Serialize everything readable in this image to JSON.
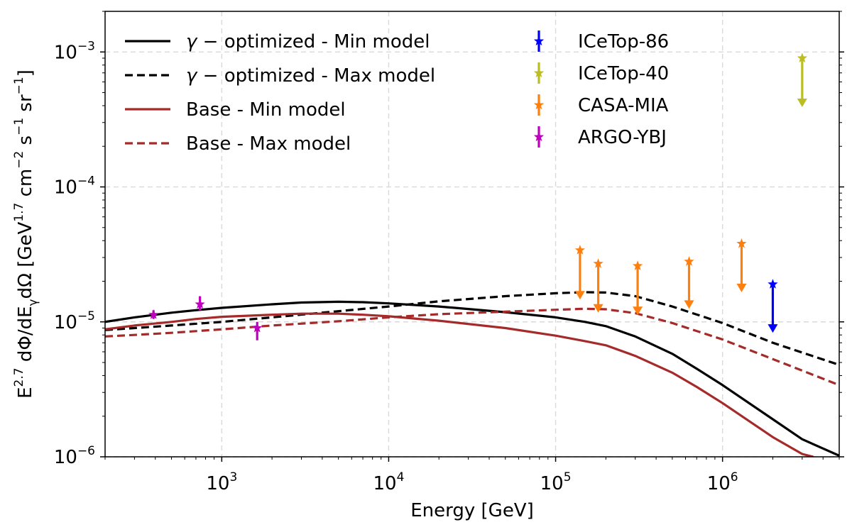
{
  "chart_data": {
    "type": "line",
    "title": "",
    "xlabel": "Energy [GeV]",
    "ylabel": {
      "parts": [
        {
          "t": "E",
          "s": "n"
        },
        {
          "t": "2.7",
          "s": "sup"
        },
        {
          "t": " dΦ/dE",
          "s": "n"
        },
        {
          "t": "γ",
          "s": "sub"
        },
        {
          "t": "dΩ [GeV",
          "s": "n"
        },
        {
          "t": "1.7",
          "s": "sup"
        },
        {
          "t": " cm",
          "s": "n"
        },
        {
          "t": "−2",
          "s": "sup"
        },
        {
          "t": " s",
          "s": "n"
        },
        {
          "t": "−1",
          "s": "sup"
        },
        {
          "t": " sr",
          "s": "n"
        },
        {
          "t": "−1",
          "s": "sup"
        },
        {
          "t": "]",
          "s": "n"
        }
      ]
    },
    "xscale": "log",
    "yscale": "log",
    "xlim": [
      200,
      5000000
    ],
    "ylim": [
      1e-06,
      0.002
    ],
    "grid": true,
    "legend_placement": "top-left",
    "x_ticks": [
      {
        "value": 1000,
        "base": "10",
        "exp": "3"
      },
      {
        "value": 10000,
        "base": "10",
        "exp": "4"
      },
      {
        "value": 100000,
        "base": "10",
        "exp": "5"
      },
      {
        "value": 1000000,
        "base": "10",
        "exp": "6"
      }
    ],
    "y_ticks": [
      {
        "value": 1e-06,
        "base": "10",
        "exp": "−6"
      },
      {
        "value": 1e-05,
        "base": "10",
        "exp": "−5"
      },
      {
        "value": 0.0001,
        "base": "10",
        "exp": "−4"
      },
      {
        "value": 0.001,
        "base": "10",
        "exp": "−3"
      }
    ],
    "series": [
      {
        "name": "γ − optimized - Min model",
        "name_parts": [
          {
            "t": "γ − ",
            "i": true
          },
          {
            "t": "optimized - Min model",
            "i": false
          }
        ],
        "color": "#000000",
        "dash": "solid",
        "x": [
          200,
          300,
          500,
          700,
          1000,
          2000,
          3000,
          5000,
          7000,
          10000,
          20000,
          50000,
          100000,
          150000,
          200000,
          300000,
          500000,
          700000,
          1000000,
          2000000,
          3000000,
          5000000
        ],
        "y": [
          1e-05,
          1.08e-05,
          1.17e-05,
          1.22e-05,
          1.27e-05,
          1.35e-05,
          1.39e-05,
          1.41e-05,
          1.4e-05,
          1.37e-05,
          1.3e-05,
          1.18e-05,
          1.08e-05,
          1e-05,
          9.3e-06,
          7.8e-06,
          5.8e-06,
          4.5e-06,
          3.4e-06,
          1.9e-06,
          1.35e-06,
          1.02e-06
        ]
      },
      {
        "name": "γ − optimized - Max model",
        "name_parts": [
          {
            "t": "γ − ",
            "i": true
          },
          {
            "t": "optimized - Max model",
            "i": false
          }
        ],
        "color": "#000000",
        "dash": "dashed",
        "x": [
          200,
          300,
          500,
          1000,
          2000,
          5000,
          10000,
          20000,
          50000,
          100000,
          150000,
          200000,
          300000,
          500000,
          1000000,
          2000000,
          5000000
        ],
        "y": [
          8.7e-06,
          9e-06,
          9.4e-06,
          1e-05,
          1.08e-05,
          1.2e-05,
          1.3e-05,
          1.42e-05,
          1.55e-05,
          1.63e-05,
          1.66e-05,
          1.65e-05,
          1.55e-05,
          1.3e-05,
          9.8e-06,
          7e-06,
          4.8e-06
        ]
      },
      {
        "name": "Base - Min model",
        "name_parts": [
          {
            "t": "Base - Min model",
            "i": false
          }
        ],
        "color": "#a52a2a",
        "dash": "solid",
        "x": [
          200,
          300,
          500,
          700,
          1000,
          2000,
          3000,
          5000,
          7000,
          10000,
          20000,
          50000,
          100000,
          150000,
          200000,
          300000,
          500000,
          700000,
          1000000,
          2000000,
          3000000,
          3500000
        ],
        "y": [
          8.8e-06,
          9.4e-06,
          1e-05,
          1.05e-05,
          1.09e-05,
          1.13e-05,
          1.15e-05,
          1.15e-05,
          1.13e-05,
          1.1e-05,
          1.02e-05,
          9e-06,
          7.9e-06,
          7.2e-06,
          6.7e-06,
          5.6e-06,
          4.2e-06,
          3.3e-06,
          2.5e-06,
          1.4e-06,
          1.05e-06,
          1e-06
        ]
      },
      {
        "name": "Base - Max model",
        "name_parts": [
          {
            "t": "Base - Max model",
            "i": false
          }
        ],
        "color": "#a52a2a",
        "dash": "dashed",
        "x": [
          200,
          300,
          500,
          1000,
          2000,
          5000,
          10000,
          20000,
          50000,
          100000,
          150000,
          200000,
          300000,
          500000,
          1000000,
          2000000,
          5000000
        ],
        "y": [
          7.8e-06,
          8e-06,
          8.3e-06,
          8.8e-06,
          9.4e-06,
          1.01e-05,
          1.08e-05,
          1.14e-05,
          1.19e-05,
          1.23e-05,
          1.25e-05,
          1.24e-05,
          1.16e-05,
          9.8e-06,
          7.4e-06,
          5.3e-06,
          3.4e-06
        ]
      }
    ],
    "points": [
      {
        "name": "ICeTop-86",
        "color": "#0000ff",
        "data": [
          {
            "x": 2000000,
            "y": 1.9e-05,
            "upper_limit": true,
            "arrow_to": 8.5e-06
          }
        ]
      },
      {
        "name": "ICeTop-40",
        "color": "#bcbd22",
        "data": [
          {
            "x": 3000000,
            "y": 0.0009,
            "upper_limit": true,
            "arrow_to": 0.0004
          }
        ]
      },
      {
        "name": "CASA-MIA",
        "color": "#ff7f0e",
        "data": [
          {
            "x": 140000,
            "y": 3.4e-05,
            "upper_limit": true,
            "arrow_to": 1.5e-05
          },
          {
            "x": 180000,
            "y": 2.7e-05,
            "upper_limit": true,
            "arrow_to": 1.2e-05
          },
          {
            "x": 310000,
            "y": 2.6e-05,
            "upper_limit": true,
            "arrow_to": 1.15e-05
          },
          {
            "x": 630000,
            "y": 2.8e-05,
            "upper_limit": true,
            "arrow_to": 1.28e-05
          },
          {
            "x": 1300000,
            "y": 3.8e-05,
            "upper_limit": true,
            "arrow_to": 1.7e-05
          }
        ]
      },
      {
        "name": "ARGO-YBJ",
        "color": "#bf00bf",
        "data": [
          {
            "x": 390,
            "y": 1.13e-05,
            "err_low": 1.05e-05,
            "err_high": 1.22e-05
          },
          {
            "x": 740,
            "y": 1.35e-05,
            "err_low": 1.22e-05,
            "err_high": 1.55e-05
          },
          {
            "x": 1630,
            "y": 9e-06,
            "err_low": 7.3e-06,
            "err_high": 1e-05
          }
        ]
      }
    ]
  }
}
